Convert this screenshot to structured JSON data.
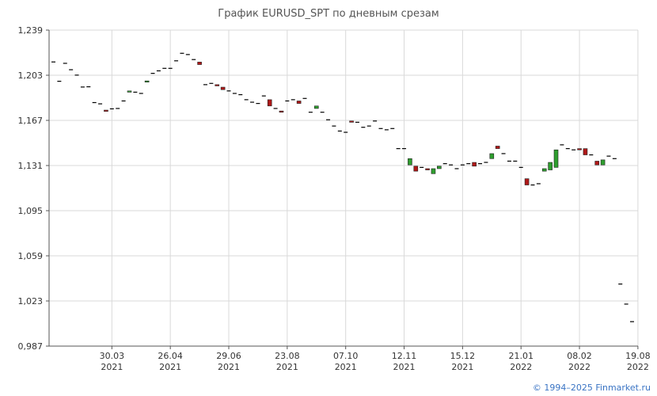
{
  "title": "График EURUSD_SPT по дневным срезам",
  "copyright": "© 1994–2025 Finmarket.ru",
  "colors": {
    "up": "#2e9e2e",
    "down": "#b01818",
    "grid": "#d9d9d9",
    "axis": "#555555",
    "flat": "#000000"
  },
  "chart_data": {
    "type": "candlestick",
    "title": "График EURUSD_SPT по дневным срезам",
    "ylim": [
      0.987,
      1.239
    ],
    "yticks": [
      "1,239",
      "1,203",
      "1,167",
      "1,131",
      "1,095",
      "1,059",
      "1,023",
      "0,987"
    ],
    "xticks": [
      {
        "day": "30.03",
        "year": "2021",
        "index": 10
      },
      {
        "day": "26.04",
        "year": "2021",
        "index": 20
      },
      {
        "day": "29.06",
        "year": "2021",
        "index": 30
      },
      {
        "day": "23.08",
        "year": "2021",
        "index": 40
      },
      {
        "day": "07.10",
        "year": "2021",
        "index": 50
      },
      {
        "day": "12.11",
        "year": "2021",
        "index": 60
      },
      {
        "day": "15.12",
        "year": "2021",
        "index": 70
      },
      {
        "day": "21.01",
        "year": "2022",
        "index": 80
      },
      {
        "day": "08.02",
        "year": "2022",
        "index": 90
      },
      {
        "day": "19.08",
        "year": "2022",
        "index": 100
      }
    ],
    "candles": [
      [
        1.2136,
        1.2136
      ],
      [
        1.1982,
        1.1982
      ],
      [
        1.2125,
        1.2125
      ],
      [
        1.2074,
        1.2074
      ],
      [
        1.2031,
        1.2031
      ],
      [
        1.1936,
        1.1936
      ],
      [
        1.1938,
        1.1938
      ],
      [
        1.1812,
        1.1812
      ],
      [
        1.1802,
        1.1802
      ],
      [
        1.1752,
        1.1742
      ],
      [
        1.1762,
        1.1762
      ],
      [
        1.1765,
        1.1765
      ],
      [
        1.1825,
        1.1825
      ],
      [
        1.1895,
        1.1905
      ],
      [
        1.1895,
        1.1895
      ],
      [
        1.1885,
        1.1885
      ],
      [
        1.1975,
        1.1985
      ],
      [
        1.2045,
        1.2045
      ],
      [
        1.2065,
        1.2065
      ],
      [
        1.2085,
        1.2085
      ],
      [
        1.2085,
        1.2085
      ],
      [
        1.2145,
        1.2145
      ],
      [
        1.2205,
        1.2205
      ],
      [
        1.2195,
        1.2195
      ],
      [
        1.2155,
        1.2155
      ],
      [
        1.2135,
        1.2115
      ],
      [
        1.1955,
        1.1955
      ],
      [
        1.1965,
        1.1965
      ],
      [
        1.1955,
        1.1945
      ],
      [
        1.1935,
        1.1915
      ],
      [
        1.1905,
        1.1905
      ],
      [
        1.1885,
        1.1885
      ],
      [
        1.1875,
        1.1875
      ],
      [
        1.1835,
        1.1835
      ],
      [
        1.1815,
        1.1815
      ],
      [
        1.1805,
        1.1805
      ],
      [
        1.1865,
        1.1865
      ],
      [
        1.1835,
        1.1785
      ],
      [
        1.1765,
        1.1765
      ],
      [
        1.1745,
        1.1735
      ],
      [
        1.1825,
        1.1825
      ],
      [
        1.1835,
        1.1835
      ],
      [
        1.1825,
        1.1805
      ],
      [
        1.1845,
        1.1845
      ],
      [
        1.1735,
        1.1735
      ],
      [
        1.1765,
        1.1785
      ],
      [
        1.1735,
        1.1735
      ],
      [
        1.1675,
        1.1675
      ],
      [
        1.1625,
        1.1625
      ],
      [
        1.1585,
        1.1585
      ],
      [
        1.1575,
        1.1575
      ],
      [
        1.1665,
        1.1655
      ],
      [
        1.1655,
        1.1655
      ],
      [
        1.1615,
        1.1615
      ],
      [
        1.1625,
        1.1625
      ],
      [
        1.1665,
        1.1665
      ],
      [
        1.1605,
        1.1605
      ],
      [
        1.1595,
        1.1595
      ],
      [
        1.1605,
        1.1605
      ],
      [
        1.1445,
        1.1445
      ],
      [
        1.1445,
        1.1445
      ],
      [
        1.1315,
        1.1365
      ],
      [
        1.1305,
        1.1265
      ],
      [
        1.1295,
        1.1295
      ],
      [
        1.1285,
        1.1275
      ],
      [
        1.1245,
        1.1285
      ],
      [
        1.1285,
        1.1305
      ],
      [
        1.1325,
        1.1325
      ],
      [
        1.1315,
        1.1315
      ],
      [
        1.1285,
        1.1285
      ],
      [
        1.1315,
        1.1315
      ],
      [
        1.1325,
        1.1325
      ],
      [
        1.1335,
        1.1305
      ],
      [
        1.1325,
        1.1325
      ],
      [
        1.1335,
        1.1335
      ],
      [
        1.1365,
        1.1405
      ],
      [
        1.1465,
        1.1445
      ],
      [
        1.1405,
        1.1405
      ],
      [
        1.1345,
        1.1345
      ],
      [
        1.1345,
        1.1345
      ],
      [
        1.1295,
        1.1295
      ],
      [
        1.1205,
        1.1155
      ],
      [
        1.1155,
        1.1155
      ],
      [
        1.1165,
        1.1165
      ],
      [
        1.1265,
        1.1285
      ],
      [
        1.1275,
        1.1335
      ],
      [
        1.1295,
        1.1435
      ],
      [
        1.1475,
        1.1475
      ],
      [
        1.1445,
        1.1445
      ],
      [
        1.1435,
        1.1435
      ],
      [
        1.1445,
        1.1435
      ],
      [
        1.1445,
        1.1395
      ],
      [
        1.1395,
        1.1395
      ],
      [
        1.1345,
        1.1315
      ],
      [
        1.1315,
        1.1355
      ],
      [
        1.1385,
        1.1385
      ],
      [
        1.1365,
        1.1365
      ],
      [
        1.0365,
        1.0365
      ],
      [
        1.0205,
        1.0205
      ],
      [
        1.0065,
        1.0065
      ]
    ]
  }
}
